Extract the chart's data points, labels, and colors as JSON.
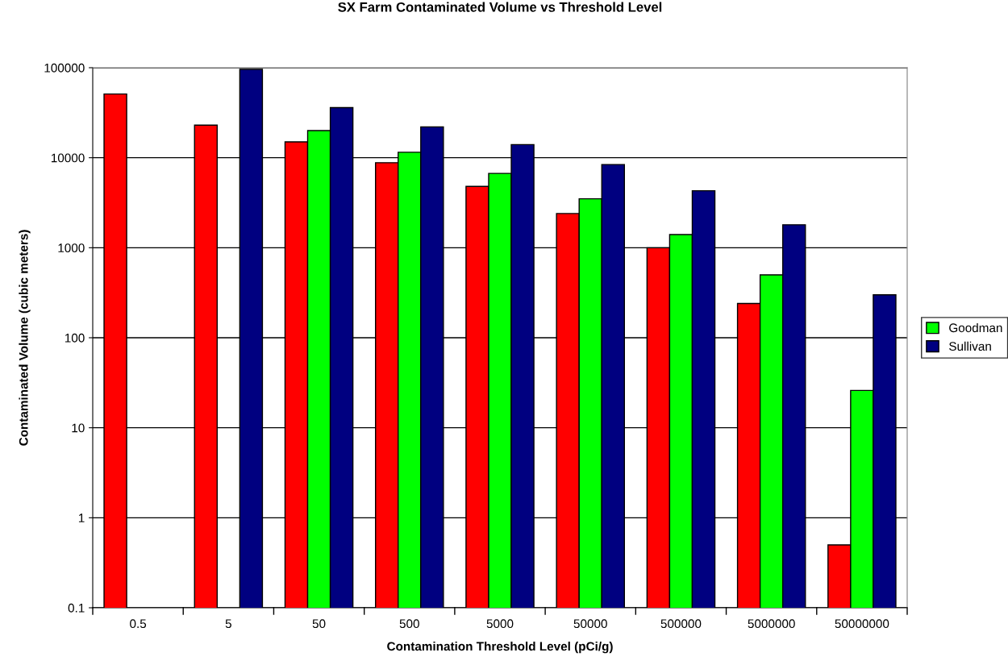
{
  "chart_data": {
    "type": "bar",
    "title": "SX Farm Contaminated Volume vs Threshold Level",
    "xlabel": "Contamination Threshold Level (pCi/g)",
    "ylabel": "Contaminated Volume (cubic meters)",
    "categories": [
      "0.5",
      "5",
      "50",
      "500",
      "5000",
      "50000",
      "500000",
      "5000000",
      "50000000"
    ],
    "series": [
      {
        "color": "#ff0000",
        "values": [
          51000,
          23000,
          15000,
          8800,
          4800,
          2400,
          1000,
          240,
          0.5
        ]
      },
      {
        "name": "Goodman",
        "color": "#00ff00",
        "values": [
          null,
          null,
          20000,
          11500,
          6700,
          3500,
          1400,
          500,
          26
        ]
      },
      {
        "name": "Sullivan",
        "color": "#000080",
        "values": [
          null,
          96000,
          36000,
          22000,
          14000,
          8400,
          4300,
          1800,
          300
        ]
      }
    ],
    "log": "y",
    "ylim": [
      0.1,
      100000
    ],
    "yticks": [
      0.1,
      1,
      10,
      100,
      1000,
      10000,
      100000
    ],
    "grid": "y",
    "legend": "right"
  }
}
